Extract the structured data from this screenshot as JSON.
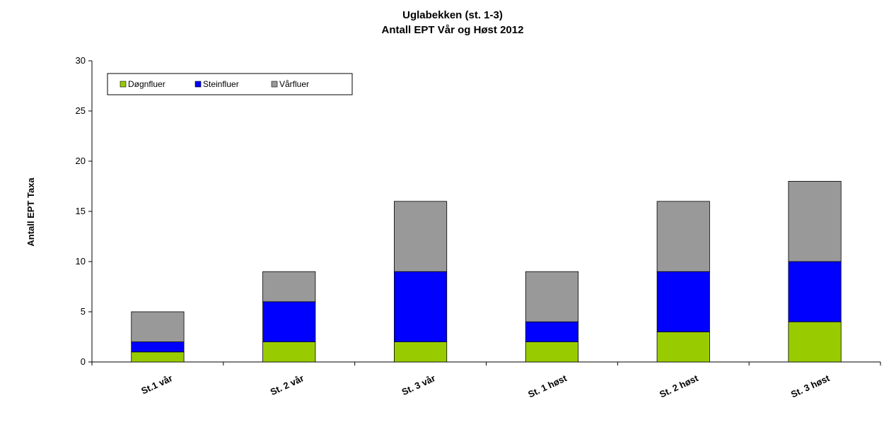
{
  "chart_data": {
    "type": "bar",
    "stacked": true,
    "title": "Uglabekken (st. 1-3)",
    "subtitle": "Antall EPT Vår og Høst 2012",
    "ylabel": "Antall EPT Taxa",
    "xlabel": "",
    "ylim": [
      0,
      30
    ],
    "yticks": [
      0,
      5,
      10,
      15,
      20,
      25,
      30
    ],
    "grid": false,
    "legend_position": "top-left",
    "categories": [
      "St.1 vår",
      "St. 2 vår",
      "St. 3 vår",
      "St. 1 høst",
      "St. 2 høst",
      "St. 3 høst"
    ],
    "series": [
      {
        "name": "Døgnfluer",
        "color": "#99cc00",
        "values": [
          1,
          2,
          2,
          2,
          3,
          4
        ]
      },
      {
        "name": "Steinfluer",
        "color": "#0000ff",
        "values": [
          1,
          4,
          7,
          2,
          6,
          6
        ]
      },
      {
        "name": "Vårfluer",
        "color": "#999999",
        "values": [
          3,
          3,
          7,
          5,
          7,
          8
        ]
      }
    ]
  }
}
